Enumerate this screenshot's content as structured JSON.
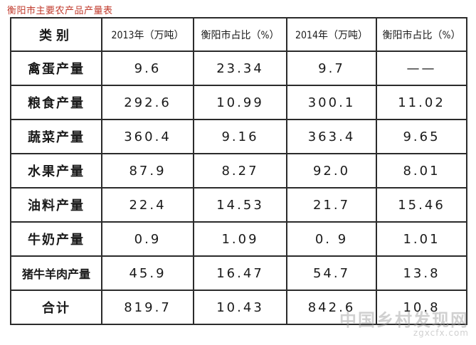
{
  "title": "衡阳市主要农产品产量表",
  "table": {
    "headers": [
      "类别",
      "2013年（万吨）",
      "衡阳市占比（%）",
      "2014年（万吨）",
      "衡阳市占比（%）"
    ],
    "rows": [
      [
        "禽蛋产量",
        "9.6",
        "23.34",
        "9.7",
        "——"
      ],
      [
        "粮食产量",
        "292.6",
        "10.99",
        "300.1",
        "11.02"
      ],
      [
        "蔬菜产量",
        "360.4",
        "9.16",
        "363.4",
        "9.65"
      ],
      [
        "水果产量",
        "87.9",
        "8.27",
        "92.0",
        "8.01"
      ],
      [
        "油料产量",
        "22.4",
        "14.53",
        "21.7",
        "15.46"
      ],
      [
        "牛奶产量",
        "0.9",
        "1.09",
        "0. 9",
        "1.01"
      ],
      [
        "猪牛羊肉产量",
        "45.9",
        "16.47",
        "54.7",
        "13.8"
      ],
      [
        "合计",
        "819.7",
        "10.43",
        "842.6",
        "10.8"
      ]
    ]
  },
  "watermark": {
    "main": "中国乡村发现网",
    "sub": "zgxcfx.com"
  },
  "colors": {
    "title": "#c0392b",
    "border": "#2b2b2b",
    "watermark": "#969696"
  }
}
